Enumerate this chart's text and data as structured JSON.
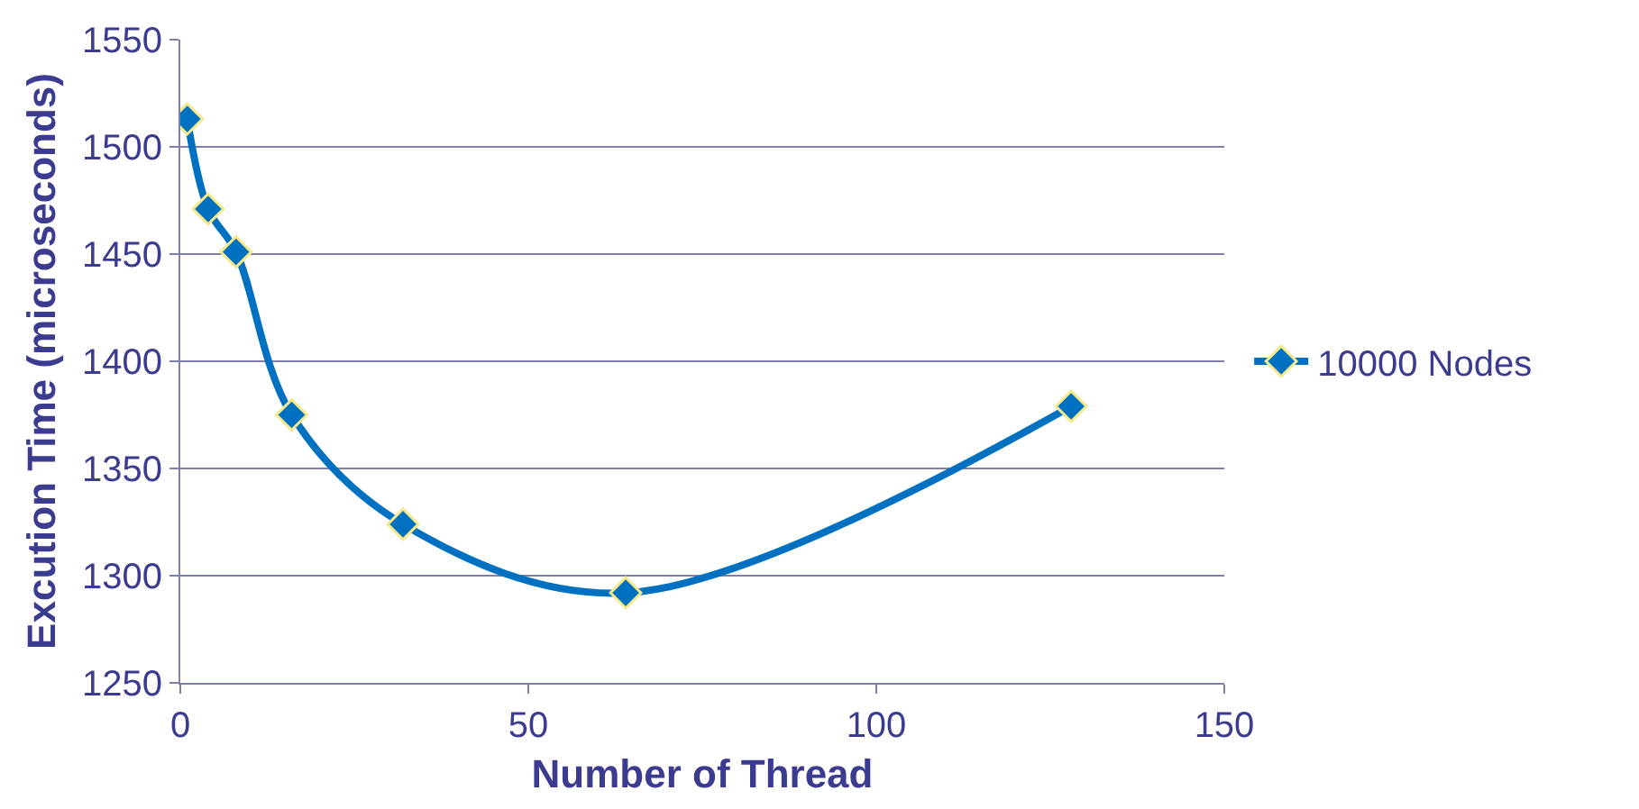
{
  "chart_data": {
    "type": "line",
    "xlabel": "Number of Thread",
    "ylabel": "Excution Time (microseconds)",
    "x": [
      1,
      4,
      8,
      16,
      32,
      64,
      128
    ],
    "series": [
      {
        "name": "10000 Nodes",
        "color": "#0070c0",
        "values": [
          1513,
          1471,
          1451,
          1375,
          1324,
          1292,
          1379
        ]
      }
    ],
    "xlim": [
      0,
      150
    ],
    "xticks": [
      0,
      50,
      100,
      150
    ],
    "ylim": [
      1250,
      1550
    ],
    "yticks": [
      1250,
      1300,
      1350,
      1400,
      1450,
      1500,
      1550
    ],
    "grid": "y",
    "legend": "right",
    "marker": "diamond",
    "line_style": "solid"
  }
}
